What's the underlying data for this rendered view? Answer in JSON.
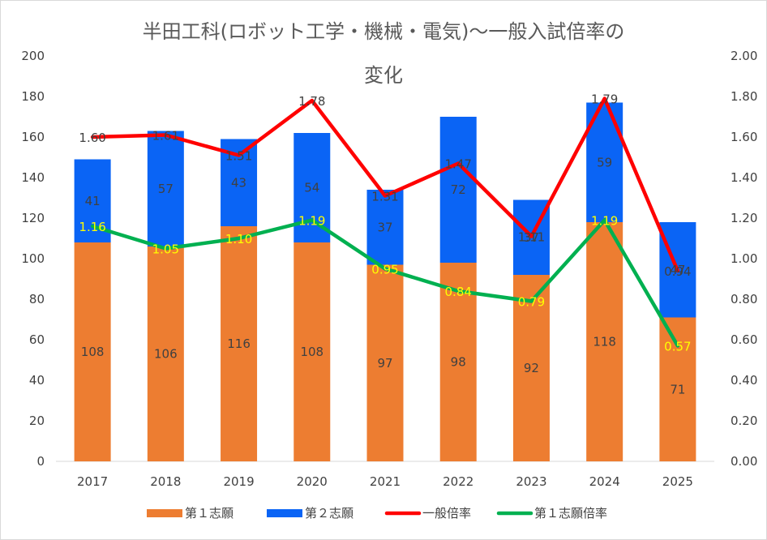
{
  "chart_data": {
    "type": "bar",
    "subtype": "stacked-bar-with-secondary-lines",
    "title_line1": "半田工科(ロボット工学・機械・電気)〜一般入試倍率の",
    "title_line2": "変化",
    "categories": [
      "2017",
      "2018",
      "2019",
      "2020",
      "2021",
      "2022",
      "2023",
      "2024",
      "2025"
    ],
    "series": [
      {
        "name": "第１志願",
        "kind": "bar",
        "axis": "left",
        "color": "#ed7d31",
        "values": [
          108,
          106,
          116,
          108,
          97,
          98,
          92,
          118,
          71
        ]
      },
      {
        "name": "第２志願",
        "kind": "bar",
        "axis": "left",
        "color": "#0a64f5",
        "values": [
          41,
          57,
          43,
          54,
          37,
          72,
          37,
          59,
          47
        ]
      },
      {
        "name": "一般倍率",
        "kind": "line",
        "axis": "right",
        "color": "#ff0000",
        "values": [
          1.6,
          1.61,
          1.51,
          1.78,
          1.31,
          1.47,
          1.11,
          1.79,
          0.94
        ],
        "labels": [
          "1.60",
          "1.61",
          "1.51",
          "1.78",
          "1.31",
          "1.47",
          "1.11",
          "1.79",
          "0.94"
        ]
      },
      {
        "name": "第１志願倍率",
        "kind": "line",
        "axis": "right",
        "color": "#00b050",
        "values": [
          1.16,
          1.05,
          1.1,
          1.19,
          0.95,
          0.84,
          0.79,
          1.19,
          0.57
        ],
        "labels": [
          "1.16",
          "1.05",
          "1.10",
          "1.19",
          "0.95",
          "0.84",
          "0.79",
          "1.19",
          "0.57"
        ]
      }
    ],
    "y_left": {
      "min": 0,
      "max": 200,
      "step": 20,
      "ticks": [
        "0",
        "20",
        "40",
        "60",
        "80",
        "100",
        "120",
        "140",
        "160",
        "180",
        "200"
      ]
    },
    "y_right": {
      "min": 0,
      "max": 2,
      "step": 0.2,
      "ticks": [
        "0.00",
        "0.20",
        "0.40",
        "0.60",
        "0.80",
        "1.00",
        "1.20",
        "1.40",
        "1.60",
        "1.80",
        "2.00"
      ]
    },
    "grid": false,
    "legend_position": "bottom"
  }
}
